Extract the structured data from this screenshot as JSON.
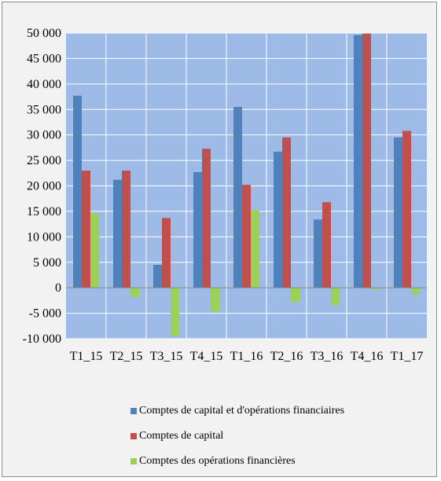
{
  "chart_data": {
    "type": "bar",
    "title": "",
    "xlabel": "",
    "ylabel": "",
    "categories": [
      "T1_15",
      "T2_15",
      "T3_15",
      "T4_15",
      "T1_16",
      "T2_16",
      "T3_16",
      "T4_16",
      "T1_17"
    ],
    "ylim": [
      -10000,
      50000
    ],
    "yticks": [
      50000,
      45000,
      40000,
      35000,
      30000,
      25000,
      20000,
      15000,
      10000,
      5000,
      0,
      -5000,
      -10000
    ],
    "ytick_labels": [
      "50 000",
      "45 000",
      "40 000",
      "35 000",
      "30 000",
      "25 000",
      "20 000",
      "15 000",
      "10 000",
      "5 000",
      "0",
      "-5 000",
      "-10 000"
    ],
    "grid": true,
    "legend_position": "bottom",
    "plot_background": "#9dbbe6",
    "series": [
      {
        "name": "Comptes de capital et d'opérations financiaires",
        "color": "#4f81bd",
        "values": [
          37700,
          21200,
          4500,
          22700,
          35500,
          26700,
          13400,
          49600,
          29500
        ]
      },
      {
        "name": "Comptes de capital",
        "color": "#c0504d",
        "values": [
          23000,
          23000,
          13700,
          27300,
          20200,
          29500,
          16800,
          49900,
          30800
        ]
      },
      {
        "name": "Comptes des opérations financières",
        "color": "#9bd255",
        "values": [
          14600,
          -1800,
          -9500,
          -4600,
          15200,
          -2800,
          -3400,
          -300,
          -1300
        ]
      }
    ]
  }
}
